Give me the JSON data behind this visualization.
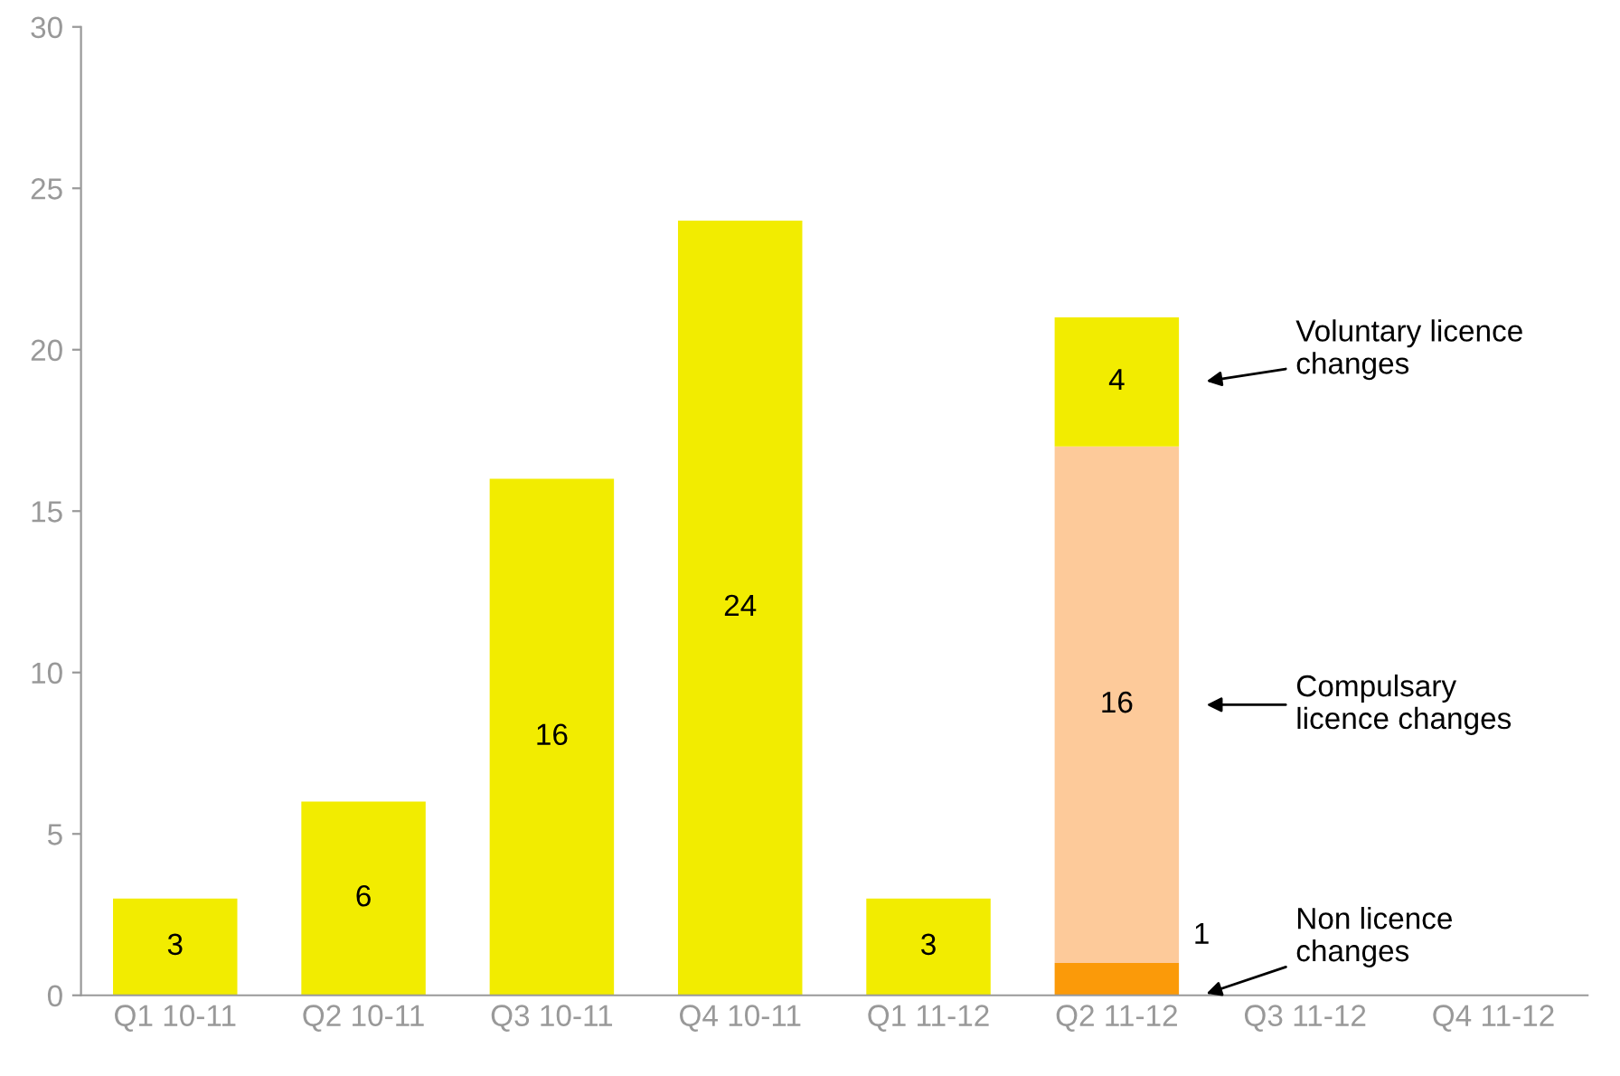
{
  "chart_data": {
    "type": "bar",
    "stacked": true,
    "categories": [
      "Q1 10-11",
      "Q2 10-11",
      "Q3 10-11",
      "Q4 10-11",
      "Q1 11-12",
      "Q2 11-12",
      "Q3 11-12",
      "Q4 11-12"
    ],
    "series": [
      {
        "name": "Non licence changes",
        "color": "#fb9a09",
        "values": [
          null,
          null,
          null,
          null,
          null,
          1,
          null,
          null
        ]
      },
      {
        "name": "Compulsary licence changes",
        "color": "#fdca9a",
        "values": [
          null,
          null,
          null,
          null,
          null,
          16,
          null,
          null
        ]
      },
      {
        "name": "Voluntary licence changes",
        "color": "#f2ec00",
        "values": [
          3,
          6,
          16,
          24,
          3,
          4,
          null,
          null
        ]
      }
    ],
    "ylim": [
      0,
      30
    ],
    "yticks": [
      0,
      5,
      10,
      15,
      20,
      25,
      30
    ],
    "grid": false,
    "data_labels": true
  }
}
